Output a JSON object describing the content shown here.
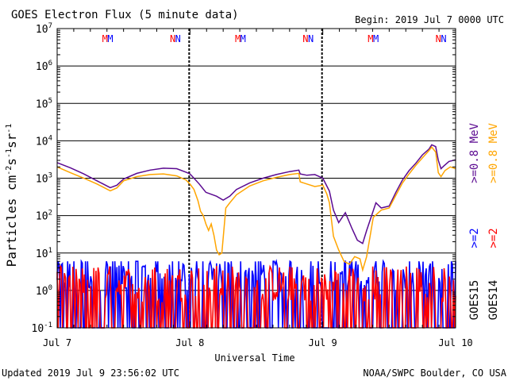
{
  "header": {
    "title": "GOES Electron Flux (5 minute data)",
    "begin": "Begin: 2019 Jul 7 0000 UTC"
  },
  "footer": {
    "updated": "Updated 2019 Jul  9 23:56:02 UTC",
    "credit": "NOAA/SWPC Boulder, CO USA"
  },
  "colors": {
    "goes15_08": "#5b0a91",
    "goes14_08": "#ffa500",
    "goes15_2": "#0000ff",
    "goes14_2": "#ff0000",
    "threshold": "#000000",
    "marker_m": "#ff0000",
    "marker_n": "#0000ff"
  },
  "chart_data": {
    "type": "line",
    "title": "GOES Electron Flux (5 minute data)",
    "xlabel": "Universal Time",
    "ylabel": "Particles cm⁻²s⁻¹sr⁻¹",
    "yscale": "log",
    "ylim": [
      0.1,
      10000000
    ],
    "xlim_days": [
      0,
      3
    ],
    "x_tick_labels": [
      "Jul 7",
      "Jul 8",
      "Jul 9",
      "Jul 10"
    ],
    "y_tick_labels": [
      {
        "base": "10",
        "exp": "-1"
      },
      {
        "base": "10",
        "exp": "0"
      },
      {
        "base": "10",
        "exp": "1"
      },
      {
        "base": "10",
        "exp": "2"
      },
      {
        "base": "10",
        "exp": "3"
      },
      {
        "base": "10",
        "exp": "4"
      },
      {
        "base": "10",
        "exp": "5"
      },
      {
        "base": "10",
        "exp": "6"
      },
      {
        "base": "10",
        "exp": "7"
      }
    ],
    "threshold": 1000,
    "grid": true,
    "markers": [
      {
        "letter": "M",
        "days": 0.36,
        "color": "#ff0000"
      },
      {
        "letter": "M",
        "days": 0.4,
        "color": "#0000ff"
      },
      {
        "letter": "N",
        "days": 0.87,
        "color": "#ff0000"
      },
      {
        "letter": "N",
        "days": 0.91,
        "color": "#0000ff"
      },
      {
        "letter": "M",
        "days": 1.36,
        "color": "#ff0000"
      },
      {
        "letter": "M",
        "days": 1.4,
        "color": "#0000ff"
      },
      {
        "letter": "N",
        "days": 1.87,
        "color": "#ff0000"
      },
      {
        "letter": "N",
        "days": 1.91,
        "color": "#0000ff"
      },
      {
        "letter": "M",
        "days": 2.36,
        "color": "#ff0000"
      },
      {
        "letter": "M",
        "days": 2.4,
        "color": "#0000ff"
      },
      {
        "letter": "N",
        "days": 2.87,
        "color": "#ff0000"
      },
      {
        "letter": "N",
        "days": 2.91,
        "color": "#0000ff"
      }
    ],
    "legend_right": [
      {
        "text": ">=0.8 MeV",
        "color": "#5b0a91"
      },
      {
        "text": ">=0.8 MeV",
        "color": "#ffa500"
      },
      {
        "text": ">=2",
        "color": "#0000ff"
      },
      {
        "text": ">=2",
        "color": "#ff0000"
      },
      {
        "text": "GOES15",
        "color": "#000000"
      },
      {
        "text": "GOES14",
        "color": "#000000"
      }
    ],
    "series": [
      {
        "name": "GOES15 >=0.8 MeV",
        "color": "#5b0a91",
        "points": [
          [
            0.0,
            2600
          ],
          [
            0.1,
            1900
          ],
          [
            0.2,
            1300
          ],
          [
            0.3,
            850
          ],
          [
            0.4,
            560
          ],
          [
            0.45,
            650
          ],
          [
            0.5,
            950
          ],
          [
            0.6,
            1350
          ],
          [
            0.7,
            1650
          ],
          [
            0.8,
            1850
          ],
          [
            0.9,
            1800
          ],
          [
            0.97,
            1450
          ],
          [
            1.0,
            1300
          ],
          [
            1.03,
            1000
          ],
          [
            1.07,
            700
          ],
          [
            1.12,
            420
          ],
          [
            1.2,
            330
          ],
          [
            1.25,
            260
          ],
          [
            1.3,
            330
          ],
          [
            1.35,
            500
          ],
          [
            1.45,
            750
          ],
          [
            1.55,
            1000
          ],
          [
            1.65,
            1250
          ],
          [
            1.75,
            1500
          ],
          [
            1.82,
            1650
          ],
          [
            1.83,
            1300
          ],
          [
            1.88,
            1200
          ],
          [
            1.94,
            1250
          ],
          [
            2.0,
            1000
          ],
          [
            2.05,
            450
          ],
          [
            2.08,
            140
          ],
          [
            2.12,
            65
          ],
          [
            2.17,
            120
          ],
          [
            2.22,
            45
          ],
          [
            2.26,
            22
          ],
          [
            2.3,
            18
          ],
          [
            2.33,
            40
          ],
          [
            2.4,
            220
          ],
          [
            2.44,
            160
          ],
          [
            2.5,
            180
          ],
          [
            2.55,
            420
          ],
          [
            2.6,
            900
          ],
          [
            2.65,
            1600
          ],
          [
            2.7,
            2500
          ],
          [
            2.75,
            4200
          ],
          [
            2.8,
            6000
          ],
          [
            2.82,
            7800
          ],
          [
            2.85,
            7000
          ],
          [
            2.87,
            3000
          ],
          [
            2.89,
            1800
          ],
          [
            2.91,
            2100
          ],
          [
            2.95,
            2800
          ],
          [
            3.0,
            3100
          ]
        ]
      },
      {
        "name": "GOES14 >=0.8 MeV",
        "color": "#ffa500",
        "points": [
          [
            0.0,
            2000
          ],
          [
            0.1,
            1400
          ],
          [
            0.2,
            1000
          ],
          [
            0.3,
            700
          ],
          [
            0.4,
            460
          ],
          [
            0.45,
            550
          ],
          [
            0.5,
            850
          ],
          [
            0.6,
            1100
          ],
          [
            0.7,
            1250
          ],
          [
            0.8,
            1300
          ],
          [
            0.9,
            1150
          ],
          [
            0.97,
            900
          ],
          [
            1.0,
            700
          ],
          [
            1.03,
            500
          ],
          [
            1.06,
            250
          ],
          [
            1.08,
            130
          ],
          [
            1.1,
            100
          ],
          [
            1.12,
            60
          ],
          [
            1.14,
            40
          ],
          [
            1.16,
            60
          ],
          [
            1.18,
            30
          ],
          [
            1.2,
            12
          ],
          [
            1.22,
            9
          ],
          [
            1.24,
            10
          ],
          [
            1.27,
            160
          ],
          [
            1.3,
            220
          ],
          [
            1.35,
            360
          ],
          [
            1.45,
            620
          ],
          [
            1.55,
            850
          ],
          [
            1.65,
            1050
          ],
          [
            1.75,
            1250
          ],
          [
            1.82,
            1350
          ],
          [
            1.83,
            800
          ],
          [
            1.88,
            700
          ],
          [
            1.94,
            600
          ],
          [
            2.0,
            650
          ],
          [
            2.03,
            380
          ],
          [
            2.05,
            220
          ],
          [
            2.08,
            28
          ],
          [
            2.12,
            12
          ],
          [
            2.16,
            6
          ],
          [
            2.2,
            5
          ],
          [
            2.24,
            8
          ],
          [
            2.28,
            7
          ],
          [
            2.3,
            3.5
          ],
          [
            2.33,
            8
          ],
          [
            2.38,
            90
          ],
          [
            2.44,
            140
          ],
          [
            2.5,
            160
          ],
          [
            2.55,
            350
          ],
          [
            2.6,
            750
          ],
          [
            2.65,
            1300
          ],
          [
            2.7,
            2200
          ],
          [
            2.75,
            3500
          ],
          [
            2.8,
            5500
          ],
          [
            2.82,
            6800
          ],
          [
            2.85,
            5000
          ],
          [
            2.87,
            1400
          ],
          [
            2.89,
            1100
          ],
          [
            2.92,
            1600
          ],
          [
            2.96,
            2000
          ],
          [
            3.0,
            1800
          ]
        ]
      }
    ],
    "noise_series": [
      {
        "name": "GOES15 >=2",
        "color": "#0000ff",
        "min": 0.1,
        "max": 6,
        "base": 3
      },
      {
        "name": "GOES14 >=2",
        "color": "#ff0000",
        "min": 0.1,
        "max": 5,
        "base": 1.5
      }
    ]
  }
}
